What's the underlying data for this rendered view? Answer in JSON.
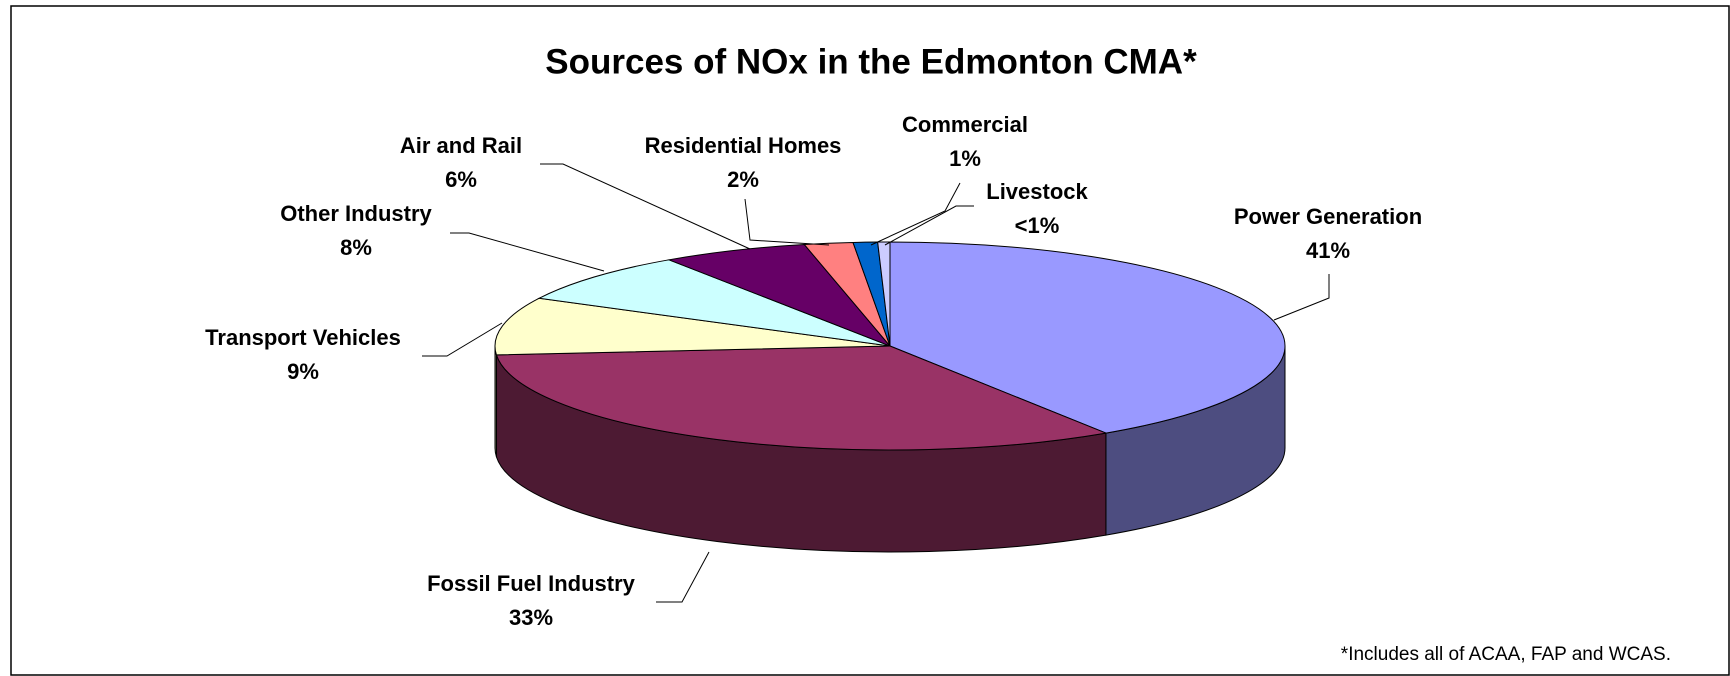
{
  "chart_data": {
    "type": "pie3d",
    "title": "Sources of NOx in the Edmonton CMA*",
    "categories": [
      "Power Generation",
      "Fossil Fuel Industry",
      "Transport Vehicles",
      "Other Industry",
      "Air and Rail",
      "Residential Homes",
      "Commercial",
      "Livestock"
    ],
    "values": [
      41,
      33,
      9,
      8,
      6,
      2,
      1,
      0.5
    ],
    "value_labels": [
      "41%",
      "33%",
      "9%",
      "8%",
      "6%",
      "2%",
      "1%",
      "<1%"
    ],
    "colors": [
      "#9999ff",
      "#993366",
      "#ffffcc",
      "#ccffff",
      "#660066",
      "#ff8080",
      "#0066cc",
      "#ccccff"
    ],
    "footnote": "*Includes all of ACAA, FAP and WCAS."
  }
}
